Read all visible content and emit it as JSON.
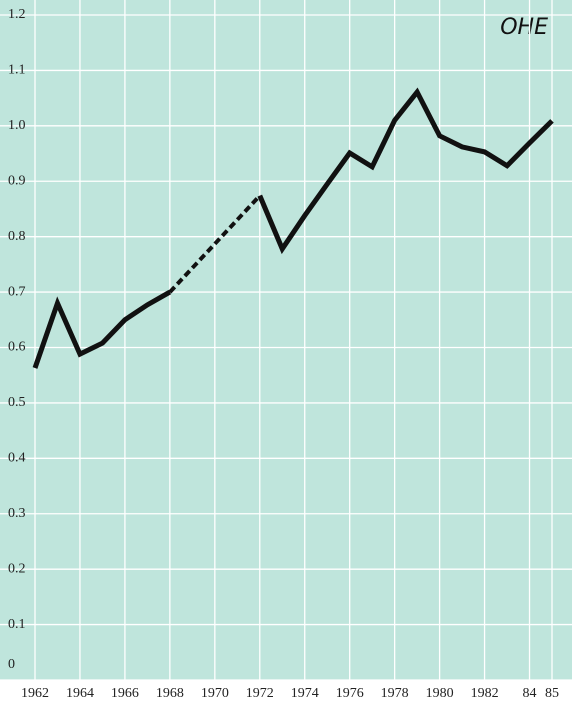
{
  "chart_data": {
    "type": "line",
    "logo": "OHE",
    "x": [
      1962,
      1963,
      1964,
      1965,
      1966,
      1967,
      1968,
      1969,
      1970,
      1971,
      1972,
      1973,
      1974,
      1975,
      1976,
      1977,
      1978,
      1979,
      1980,
      1981,
      1982,
      1983,
      1984,
      1985
    ],
    "series": [
      {
        "color": "#111111",
        "values": [
          0.563,
          0.68,
          0.588,
          0.608,
          0.65,
          0.677,
          0.7,
          null,
          null,
          null,
          0.874,
          0.778,
          0.838,
          0.895,
          0.951,
          0.926,
          1.01,
          1.061,
          0.982,
          0.962,
          0.953,
          0.928,
          0.969,
          1.009
        ]
      }
    ],
    "dashed_gaps": true,
    "xlim": [
      1962,
      1985
    ],
    "xticks": [
      1962,
      1964,
      1966,
      1968,
      1970,
      1972,
      1974,
      1976,
      1978,
      1980,
      1982,
      {
        "value": 1984,
        "label": "84"
      },
      {
        "value": 1985,
        "label": "85"
      }
    ],
    "ylim": [
      0,
      1.2
    ],
    "yticks": [
      0,
      0.1,
      0.2,
      0.3,
      0.4,
      0.5,
      0.6,
      0.7,
      0.8,
      0.9,
      {
        "value": 1,
        "label": "1.0"
      },
      1.1,
      1.2
    ],
    "grid": true
  }
}
